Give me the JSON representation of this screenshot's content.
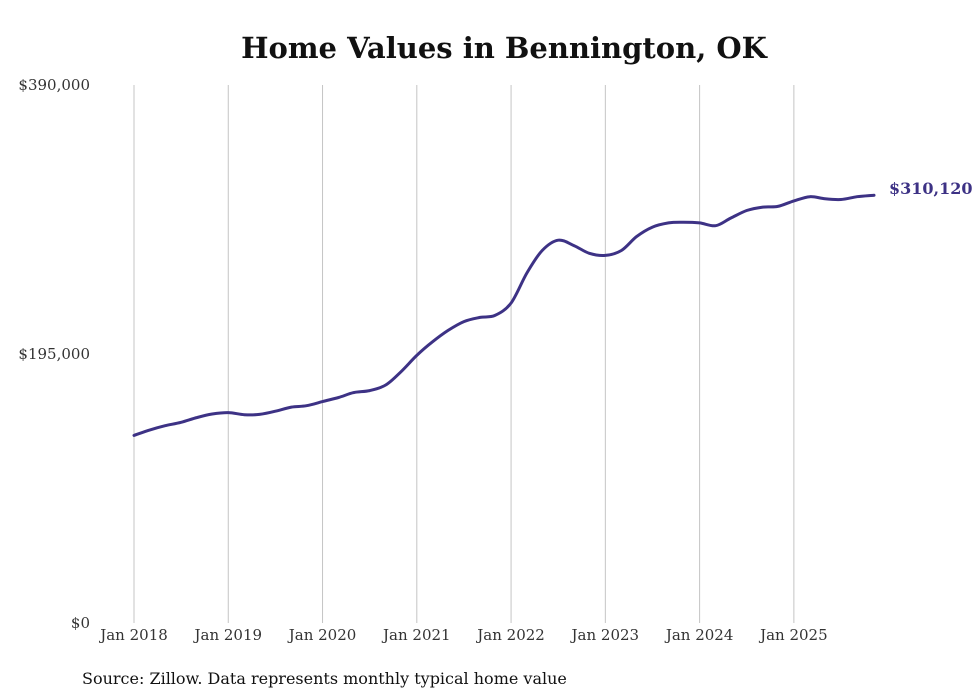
{
  "chart_data": {
    "type": "line",
    "title": "Home Values in Bennington, OK",
    "source": "Source: Zillow. Data represents monthly typical home value",
    "y_ticks": [
      {
        "value": 390000,
        "label": "$390,000"
      },
      {
        "value": 195000,
        "label": "$195,000"
      },
      {
        "value": 0,
        "label": "$0"
      }
    ],
    "ylim": [
      0,
      390000
    ],
    "xlim": [
      2018.0,
      2025.85
    ],
    "x_ticks": [
      {
        "value": 2018,
        "label": "Jan 2018"
      },
      {
        "value": 2019,
        "label": "Jan 2019"
      },
      {
        "value": 2020,
        "label": "Jan 2020"
      },
      {
        "value": 2021,
        "label": "Jan 2021"
      },
      {
        "value": 2022,
        "label": "Jan 2022"
      },
      {
        "value": 2023,
        "label": "Jan 2023"
      },
      {
        "value": 2024,
        "label": "Jan 2024"
      },
      {
        "value": 2025,
        "label": "Jan 2025"
      }
    ],
    "series": [
      {
        "name": "Typical home value",
        "color": "#3d3285",
        "end_label": "$310,120",
        "points": [
          [
            2018.0,
            136000
          ],
          [
            2018.17,
            140000
          ],
          [
            2018.33,
            143000
          ],
          [
            2018.5,
            145500
          ],
          [
            2018.67,
            149000
          ],
          [
            2018.83,
            151500
          ],
          [
            2019.0,
            152500
          ],
          [
            2019.17,
            151000
          ],
          [
            2019.33,
            151200
          ],
          [
            2019.5,
            153500
          ],
          [
            2019.67,
            156500
          ],
          [
            2019.83,
            157500
          ],
          [
            2020.0,
            160500
          ],
          [
            2020.17,
            163500
          ],
          [
            2020.33,
            167000
          ],
          [
            2020.5,
            168500
          ],
          [
            2020.67,
            172500
          ],
          [
            2020.83,
            182000
          ],
          [
            2021.0,
            194000
          ],
          [
            2021.17,
            204000
          ],
          [
            2021.33,
            212000
          ],
          [
            2021.5,
            218500
          ],
          [
            2021.67,
            221500
          ],
          [
            2021.83,
            223000
          ],
          [
            2022.0,
            232000
          ],
          [
            2022.17,
            254000
          ],
          [
            2022.33,
            270000
          ],
          [
            2022.5,
            277500
          ],
          [
            2022.67,
            273500
          ],
          [
            2022.83,
            268000
          ],
          [
            2023.0,
            266500
          ],
          [
            2023.17,
            270000
          ],
          [
            2023.33,
            280000
          ],
          [
            2023.5,
            287000
          ],
          [
            2023.67,
            290000
          ],
          [
            2023.83,
            290500
          ],
          [
            2024.0,
            290000
          ],
          [
            2024.17,
            288000
          ],
          [
            2024.33,
            293500
          ],
          [
            2024.5,
            299000
          ],
          [
            2024.67,
            301500
          ],
          [
            2024.83,
            302000
          ],
          [
            2025.0,
            306000
          ],
          [
            2025.17,
            309000
          ],
          [
            2025.33,
            307500
          ],
          [
            2025.5,
            307000
          ],
          [
            2025.67,
            309000
          ],
          [
            2025.85,
            310120
          ]
        ]
      }
    ]
  }
}
